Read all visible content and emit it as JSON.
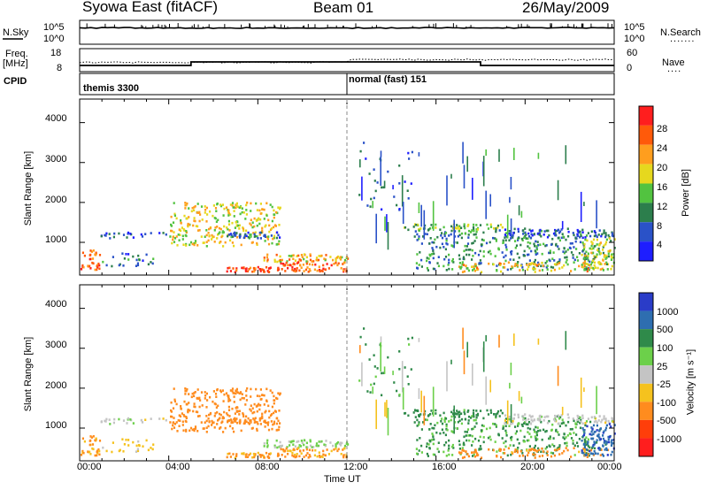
{
  "header": {
    "station": "Syowa East (fitACF)",
    "beam": "Beam 01",
    "date": "26/May/2009"
  },
  "noise_panel": {
    "left_label": "N.Sky",
    "right_label": "N.Search",
    "right_legend": ".......",
    "left_ticks": [
      "10^5",
      "10^0"
    ],
    "right_ticks": [
      "10^5",
      "10^0"
    ]
  },
  "freq_panel": {
    "left_label_1": "Freq.",
    "left_label_2": "[MHz]",
    "right_label": "Nave",
    "right_legend": "....",
    "left_ticks": [
      "18",
      "8"
    ],
    "right_ticks": [
      "60",
      "0"
    ]
  },
  "cpid": {
    "label": "CPID",
    "programs": [
      "themis 3300",
      "normal (fast) 151"
    ]
  },
  "xaxis": {
    "label": "Time UT",
    "ticks": [
      "00:00",
      "04:00",
      "08:00",
      "12:00",
      "16:00",
      "20:00",
      "00:00"
    ]
  },
  "power_panel": {
    "ylabel": "Slant Range [km]",
    "yticks": [
      "1000",
      "2000",
      "3000",
      "4000"
    ],
    "colorbar_label": "Power [dB]",
    "colorbar_ticks": [
      "4",
      "8",
      "12",
      "16",
      "20",
      "24",
      "28"
    ]
  },
  "velocity_panel": {
    "ylabel": "Slant Range [km]",
    "yticks": [
      "1000",
      "2000",
      "3000",
      "4000"
    ],
    "colorbar_label": "Velocity [m s⁻¹]",
    "colorbar_ticks": [
      "1000",
      "500",
      "100",
      "25",
      "-25",
      "-100",
      "-500",
      "-1000"
    ]
  },
  "chart_data": {
    "type": "heatmap",
    "title": "Syowa East (fitACF)  Beam 01  26/May/2009",
    "x_unit": "hours UT",
    "xlim": [
      0,
      24
    ],
    "ylim": [
      180,
      4590
    ],
    "ylabel": "Slant Range [km]",
    "xlabel": "Time UT",
    "cpid_segments": [
      {
        "start": 0,
        "end": 12,
        "name": "themis 3300"
      },
      {
        "start": 12,
        "end": 24,
        "name": "normal (fast) 151"
      }
    ],
    "frequency_MHz": [
      {
        "start": 0,
        "end": 5,
        "value": 10
      },
      {
        "start": 5,
        "end": 18,
        "value": 12
      },
      {
        "start": 18,
        "end": 24,
        "value": 10
      }
    ],
    "power_scale": {
      "min": 0,
      "max": 32,
      "levels": [
        {
          "from": 0,
          "to": 4,
          "color": "#1e1eff"
        },
        {
          "from": 4,
          "to": 8,
          "color": "#2a52c8"
        },
        {
          "from": 8,
          "to": 12,
          "color": "#2c7e4c"
        },
        {
          "from": 12,
          "to": 16,
          "color": "#52c340"
        },
        {
          "from": 16,
          "to": 20,
          "color": "#e6d81e"
        },
        {
          "from": 20,
          "to": 24,
          "color": "#ff9e1e"
        },
        {
          "from": 24,
          "to": 28,
          "color": "#ff5a0a"
        },
        {
          "from": 28,
          "to": 32,
          "color": "#ff1e1e"
        }
      ]
    },
    "velocity_scale": {
      "levels": [
        {
          "label": "> 1000",
          "color": "#2a3cc8"
        },
        {
          "label": "500 to 1000",
          "color": "#2e6eb0"
        },
        {
          "label": "100 to 500",
          "color": "#2f8a4a"
        },
        {
          "label": "25 to 100",
          "color": "#6cd04a"
        },
        {
          "label": "-25 to 25",
          "color": "#c4c4c4"
        },
        {
          "label": "-100 to -25",
          "color": "#f5c21e"
        },
        {
          "label": "-500 to -100",
          "color": "#ff8c1e"
        },
        {
          "label": "-1000 to -500",
          "color": "#ff3e0a"
        },
        {
          "label": "< -1000",
          "color": "#ff1e1e"
        }
      ]
    },
    "echo_regions": [
      {
        "t0": 0.0,
        "t1": 0.9,
        "r0": 250,
        "r1": 800,
        "power": 26,
        "velocity": -150,
        "density": 0.45
      },
      {
        "t0": 0.9,
        "t1": 4.0,
        "r0": 1100,
        "r1": 1250,
        "power": 6,
        "velocity": 0,
        "density": 0.35
      },
      {
        "t0": 4.0,
        "t1": 9.0,
        "r0": 900,
        "r1": 2000,
        "power": 18,
        "velocity": -300,
        "density": 0.35
      },
      {
        "t0": 6.5,
        "t1": 9.0,
        "r0": 1100,
        "r1": 1250,
        "power": 7,
        "velocity": -250,
        "density": 0.7
      },
      {
        "t0": 1.0,
        "t1": 3.5,
        "r0": 400,
        "r1": 750,
        "power": 8,
        "velocity": -50,
        "density": 0.2
      },
      {
        "t0": 6.5,
        "t1": 9.0,
        "r0": 250,
        "r1": 380,
        "power": 29,
        "velocity": -150,
        "density": 0.9
      },
      {
        "t0": 8.2,
        "t1": 12.0,
        "r0": 500,
        "r1": 700,
        "power": 20,
        "velocity": 40,
        "density": 0.6
      },
      {
        "t0": 9.0,
        "t1": 12.0,
        "r0": 250,
        "r1": 500,
        "power": 26,
        "velocity": -110,
        "density": 0.6
      },
      {
        "t0": 12.5,
        "t1": 15.0,
        "r0": 1800,
        "r1": 3500,
        "power": 6,
        "velocity": 150,
        "density": 0.05
      },
      {
        "t0": 14.5,
        "t1": 19.0,
        "r0": 1300,
        "r1": 1450,
        "power": 14,
        "velocity": 200,
        "density": 0.6
      },
      {
        "t0": 15.0,
        "t1": 23.0,
        "r0": 300,
        "r1": 1300,
        "power": 10,
        "velocity": 120,
        "density": 0.3
      },
      {
        "t0": 17.0,
        "t1": 24.0,
        "r0": 250,
        "r1": 500,
        "power": 20,
        "velocity": -200,
        "density": 0.35
      },
      {
        "t0": 19.0,
        "t1": 24.0,
        "r0": 1100,
        "r1": 1350,
        "power": 6,
        "velocity": 0,
        "density": 0.45
      },
      {
        "t0": 22.5,
        "t1": 24.0,
        "r0": 300,
        "r1": 1100,
        "power": 16,
        "velocity": 800,
        "density": 0.6
      }
    ]
  }
}
